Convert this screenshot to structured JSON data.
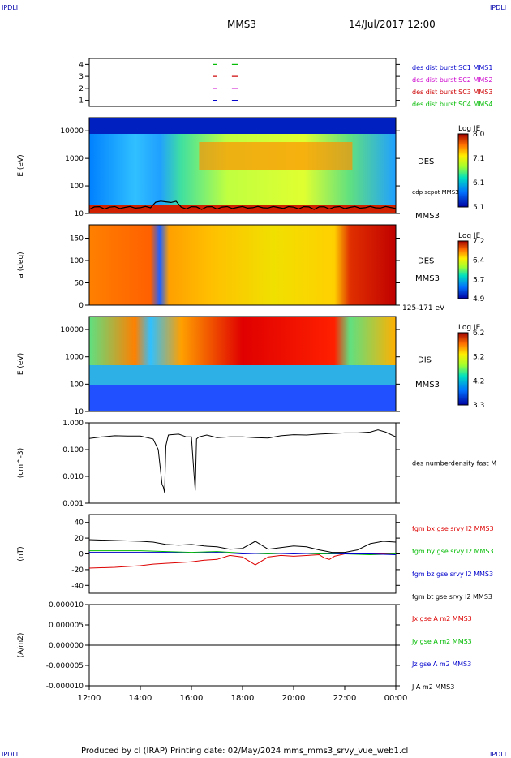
{
  "corner": {
    "left": "IPDLI",
    "right": "IPDLI",
    "bottom_left": "IPDLI",
    "bottom_right": "IPDLI"
  },
  "header": {
    "title": "MMS3",
    "datetime": "14/Jul/2017 12:00"
  },
  "footer": "Produced by cl (IRAP)   Printing date: 02/May/2024   mms_mms3_srvy_vue_web1.cl",
  "colors": {
    "mms1": "#0000cc",
    "mms2": "#cc00cc",
    "mms3": "#cc0000",
    "mms4": "#00bb00",
    "bx": "#dd0000",
    "by": "#00bb00",
    "bz": "#0000cc",
    "bt": "#000000"
  },
  "chart_data": [
    {
      "type": "timeline",
      "ylim": [
        0.5,
        4.5
      ],
      "yticks": [
        "1",
        "2",
        "3",
        "4"
      ],
      "legend": [
        {
          "name": "des dist burst SC1 MMS1",
          "color": "#0000cc"
        },
        {
          "name": "des dist burst SC2 MMS2",
          "color": "#cc00cc"
        },
        {
          "name": "des dist burst SC3 MMS3",
          "color": "#cc0000"
        },
        {
          "name": "des dist burst SC4 MMS4",
          "color": "#00bb00"
        }
      ],
      "intervals": [
        [
          "16:50",
          "17:00"
        ],
        [
          "17:35",
          "17:50"
        ]
      ]
    },
    {
      "type": "heatmap",
      "ylabel": "E (eV)",
      "scale": "log",
      "ylim": [
        10,
        30000
      ],
      "yticks": [
        "10",
        "100",
        "1000",
        "10000"
      ],
      "colorbar": {
        "label": "Log JE",
        "ticks": [
          "8.0",
          "7.1",
          "6.1",
          "5.1"
        ],
        "range": [
          5.1,
          8.0
        ]
      },
      "labels": [
        "DES",
        "edp scpot MMS3",
        "MMS3"
      ]
    },
    {
      "type": "heatmap",
      "ylabel": "a (deg)",
      "ylim": [
        0,
        180
      ],
      "yticks": [
        "0",
        "50",
        "100",
        "150"
      ],
      "colorbar": {
        "label": "Log JE",
        "ticks": [
          "7.2",
          "6.4",
          "5.7",
          "4.9"
        ],
        "range": [
          4.9,
          7.2
        ]
      },
      "labels": [
        "DES",
        "MMS3",
        "125-171 eV"
      ]
    },
    {
      "type": "heatmap",
      "ylabel": "E (eV)",
      "scale": "log",
      "ylim": [
        10,
        30000
      ],
      "yticks": [
        "10",
        "100",
        "1000",
        "10000"
      ],
      "colorbar": {
        "label": "Log JE",
        "ticks": [
          "6.2",
          "5.2",
          "4.2",
          "3.3"
        ],
        "range": [
          3.3,
          6.2
        ]
      },
      "labels": [
        "DIS",
        "MMS3"
      ]
    },
    {
      "type": "line",
      "ylabel": "(cm^-3)",
      "scale": "log",
      "ylim": [
        0.001,
        1.0
      ],
      "yticks": [
        "0.001",
        "0.010",
        "0.100",
        "1.000"
      ],
      "series": [
        {
          "name": "des numberdensity fast M",
          "color": "#000000",
          "x": [
            0,
            0.5,
            1,
            1.5,
            2,
            2.5,
            2.7,
            2.85,
            2.9,
            2.95,
            3.0,
            3.1,
            3.2,
            3.5,
            3.8,
            4.0,
            4.1,
            4.15,
            4.2,
            4.3,
            4.6,
            5,
            5.5,
            6,
            6.5,
            7,
            7.5,
            8,
            8.5,
            9,
            9.5,
            10,
            10.5,
            11,
            11.3,
            11.6,
            12
          ],
          "y": [
            0.26,
            0.3,
            0.33,
            0.32,
            0.32,
            0.25,
            0.1,
            0.005,
            0.004,
            0.0025,
            0.14,
            0.35,
            0.36,
            0.38,
            0.3,
            0.3,
            0.012,
            0.003,
            0.25,
            0.3,
            0.35,
            0.28,
            0.3,
            0.3,
            0.28,
            0.27,
            0.33,
            0.36,
            0.35,
            0.38,
            0.4,
            0.42,
            0.42,
            0.45,
            0.55,
            0.45,
            0.3
          ]
        }
      ]
    },
    {
      "type": "line",
      "ylabel": "(nT)",
      "ylim": [
        -50,
        50
      ],
      "yticks": [
        "-40",
        "-20",
        "0",
        "20",
        "40"
      ],
      "series": [
        {
          "name": "fgm bx gse srvy l2 MMS3",
          "color": "#dd0000",
          "x": [
            0,
            1,
            2,
            2.5,
            3,
            3.5,
            4,
            4.5,
            5,
            5.5,
            6,
            6.5,
            7,
            7.5,
            8,
            9,
            9.2,
            9.4,
            9.6,
            10,
            11,
            12
          ],
          "y": [
            -18,
            -17,
            -15,
            -13,
            -12,
            -11,
            -10,
            -8,
            -7,
            -2,
            -4,
            -14,
            -4,
            -2,
            -3,
            -1,
            -5,
            -7,
            -3,
            0,
            0,
            0
          ]
        },
        {
          "name": "fgm by gse srvy l2 MMS3",
          "color": "#00bb00",
          "x": [
            0,
            2,
            3,
            4,
            5,
            6,
            7,
            8,
            9,
            10,
            11,
            12
          ],
          "y": [
            4,
            4,
            3,
            2,
            3,
            1,
            0,
            1,
            0,
            0,
            -1,
            0
          ]
        },
        {
          "name": "fgm bz gse srvy l2 MMS3",
          "color": "#0000cc",
          "x": [
            0,
            2,
            3,
            4,
            5,
            6,
            7,
            8,
            9,
            10,
            11,
            12
          ],
          "y": [
            2,
            2,
            2,
            1,
            2,
            0,
            1,
            0,
            1,
            0,
            0,
            -1
          ]
        },
        {
          "name": "fgm bt gse srvy l2 MMS3",
          "color": "#000000",
          "x": [
            0,
            1,
            2,
            2.5,
            3,
            3.5,
            4,
            4.5,
            5,
            5.5,
            6,
            6.5,
            7,
            7.5,
            8,
            8.5,
            9,
            9.5,
            10,
            10.5,
            11,
            11.5,
            12
          ],
          "y": [
            18,
            17,
            16,
            15,
            12,
            11,
            12,
            10,
            9,
            6,
            7,
            16,
            6,
            8,
            10,
            9,
            5,
            2,
            2,
            5,
            13,
            16,
            15
          ]
        }
      ]
    },
    {
      "type": "line",
      "ylabel": "(A/m2)",
      "ylim": [
        -1e-05,
        1e-05
      ],
      "yticks": [
        "-0.000010",
        "-0.000005",
        "0.000000",
        "0.000005",
        "0.000010"
      ],
      "series": [
        {
          "name": "Jx gse A m2 MMS3",
          "color": "#dd0000",
          "x": [
            0,
            12
          ],
          "y": [
            0,
            0
          ]
        },
        {
          "name": "Jy gse A m2 MMS3",
          "color": "#00bb00",
          "x": [
            0,
            12
          ],
          "y": [
            0,
            0
          ]
        },
        {
          "name": "Jz gse A m2 MMS3",
          "color": "#0000cc",
          "x": [
            0,
            12
          ],
          "y": [
            0,
            0
          ]
        },
        {
          "name": "J A m2 MMS3",
          "color": "#000000",
          "x": [
            0,
            12
          ],
          "y": [
            0,
            0
          ]
        }
      ]
    }
  ],
  "xticks": [
    "12:00",
    "14:00",
    "16:00",
    "18:00",
    "20:00",
    "22:00",
    "00:00"
  ]
}
